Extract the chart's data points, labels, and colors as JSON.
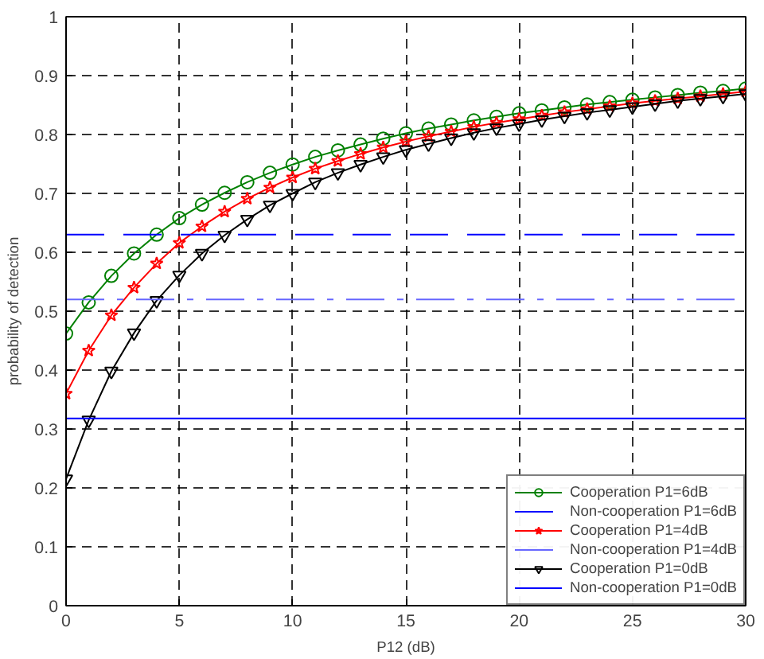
{
  "chart_data": {
    "type": "line",
    "xlabel": "P12 (dB)",
    "ylabel": "probability of detection",
    "x": [
      0,
      1,
      2,
      3,
      4,
      5,
      6,
      7,
      8,
      9,
      10,
      11,
      12,
      13,
      14,
      15,
      16,
      17,
      18,
      19,
      20,
      21,
      22,
      23,
      24,
      25,
      26,
      27,
      28,
      29,
      30
    ],
    "xlim": [
      0,
      30
    ],
    "xticks": [
      0,
      5,
      10,
      15,
      20,
      25,
      30
    ],
    "ylim": [
      0,
      1
    ],
    "yticks": [
      0,
      0.1,
      0.2,
      0.3,
      0.4,
      0.5,
      0.6,
      0.7,
      0.8,
      0.9,
      1
    ],
    "grid": true,
    "legend": "bottom right",
    "series": [
      {
        "name": "Cooperation P1=6dB",
        "color": "#008000",
        "marker": "circle",
        "values": [
          0.462,
          0.515,
          0.56,
          0.598,
          0.63,
          0.658,
          0.681,
          0.701,
          0.719,
          0.735,
          0.749,
          0.762,
          0.773,
          0.783,
          0.793,
          0.802,
          0.81,
          0.817,
          0.824,
          0.83,
          0.836,
          0.841,
          0.846,
          0.851,
          0.855,
          0.859,
          0.863,
          0.867,
          0.871,
          0.874,
          0.878
        ]
      },
      {
        "name": "Cooperation P1=4dB",
        "color": "#ff0000",
        "marker": "star",
        "values": [
          0.36,
          0.433,
          0.493,
          0.54,
          0.581,
          0.616,
          0.644,
          0.669,
          0.691,
          0.71,
          0.727,
          0.742,
          0.755,
          0.767,
          0.778,
          0.788,
          0.797,
          0.805,
          0.813,
          0.82,
          0.826,
          0.832,
          0.838,
          0.843,
          0.848,
          0.853,
          0.857,
          0.861,
          0.865,
          0.869,
          0.873
        ]
      },
      {
        "name": "Cooperation P1=0dB",
        "color": "#000000",
        "marker": "triangle",
        "values": [
          0.215,
          0.315,
          0.398,
          0.463,
          0.518,
          0.561,
          0.598,
          0.629,
          0.656,
          0.68,
          0.7,
          0.719,
          0.735,
          0.749,
          0.762,
          0.774,
          0.784,
          0.794,
          0.803,
          0.811,
          0.818,
          0.825,
          0.831,
          0.837,
          0.842,
          0.847,
          0.852,
          0.857,
          0.861,
          0.865,
          0.869
        ]
      }
    ],
    "ref_lines": [
      {
        "axis": "y",
        "value": 0.63,
        "label": "Non-cooperation P1=6dB",
        "color": "#0000ff",
        "line_style": "dashed"
      },
      {
        "axis": "y",
        "value": 0.52,
        "label": "Non-cooperation P1=4dB",
        "color": "#6666ff",
        "line_style": "dashdot"
      },
      {
        "axis": "y",
        "value": 0.318,
        "label": "Non-cooperation P1=0dB",
        "color": "#0000ff",
        "line_style": "solid"
      }
    ]
  }
}
